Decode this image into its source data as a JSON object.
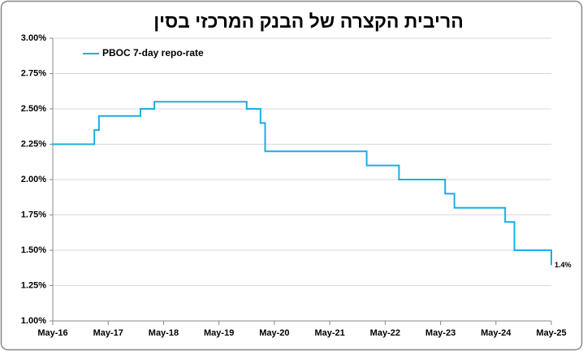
{
  "chart_data": {
    "type": "line",
    "step": true,
    "title": "הריבית הקצרה של הבנק המרכזי בסין",
    "x": [
      "May-16",
      "Feb-17",
      "Mar-17",
      "Dec-17",
      "Mar-18",
      "Nov-19",
      "Feb-20",
      "Mar-20",
      "Jan-22",
      "Aug-22",
      "Jun-23",
      "Aug-23",
      "Jul-24",
      "Sep-24",
      "May-25"
    ],
    "series": [
      {
        "name": "PBOC 7-day repo-rate",
        "color": "#1aaee6",
        "values": [
          2.25,
          2.35,
          2.45,
          2.5,
          2.55,
          2.5,
          2.4,
          2.2,
          2.1,
          2.0,
          1.9,
          1.8,
          1.7,
          1.5,
          1.4
        ],
        "value_labels": [
          null,
          null,
          null,
          null,
          null,
          null,
          null,
          null,
          null,
          null,
          null,
          null,
          null,
          null,
          "1.4%"
        ]
      }
    ],
    "xticks": [
      "May-16",
      "May-17",
      "May-18",
      "May-19",
      "May-20",
      "May-21",
      "May-22",
      "May-23",
      "May-24",
      "May-25"
    ],
    "ylim": [
      1.0,
      3.0
    ],
    "yticks": [
      {
        "value": 1.0,
        "label": "1.00%"
      },
      {
        "value": 1.25,
        "label": "1.25%"
      },
      {
        "value": 1.5,
        "label": "1.50%"
      },
      {
        "value": 1.75,
        "label": "1.75%"
      },
      {
        "value": 2.0,
        "label": "2.00%"
      },
      {
        "value": 2.25,
        "label": "2.25%"
      },
      {
        "value": 2.5,
        "label": "2.50%"
      },
      {
        "value": 2.75,
        "label": "2.75%"
      },
      {
        "value": 3.0,
        "label": "3.00%"
      }
    ],
    "grid": true,
    "legend": "top-left"
  }
}
